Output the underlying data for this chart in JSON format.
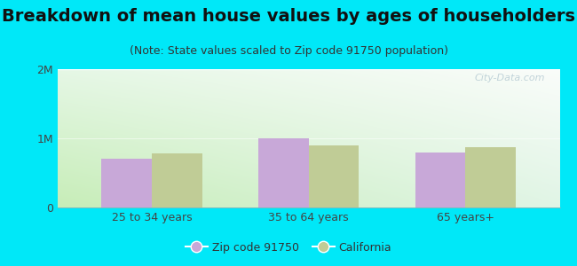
{
  "title": "Breakdown of mean house values by ages of householders",
  "subtitle": "(Note: State values scaled to Zip code 91750 population)",
  "categories": [
    "25 to 34 years",
    "35 to 64 years",
    "65 years+"
  ],
  "zip_values": [
    700000,
    1000000,
    800000
  ],
  "ca_values": [
    780000,
    900000,
    870000
  ],
  "zip_color": "#c8a8d8",
  "ca_color": "#c0cc96",
  "background_outer": "#00e8f8",
  "background_chart_topleft": "#e8f8e8",
  "background_chart_topright": "#f8f8f8",
  "background_chart_bottomleft": "#c8e8b8",
  "background_chart_bottomright": "#e0f0e8",
  "ylim": [
    0,
    2000000
  ],
  "yticks": [
    0,
    1000000,
    2000000
  ],
  "ytick_labels": [
    "0",
    "1M",
    "2M"
  ],
  "legend_zip_label": "Zip code 91750",
  "legend_ca_label": "California",
  "bar_width": 0.32,
  "title_fontsize": 14,
  "subtitle_fontsize": 9,
  "tick_fontsize": 9,
  "legend_fontsize": 9,
  "watermark": "City-Data.com"
}
